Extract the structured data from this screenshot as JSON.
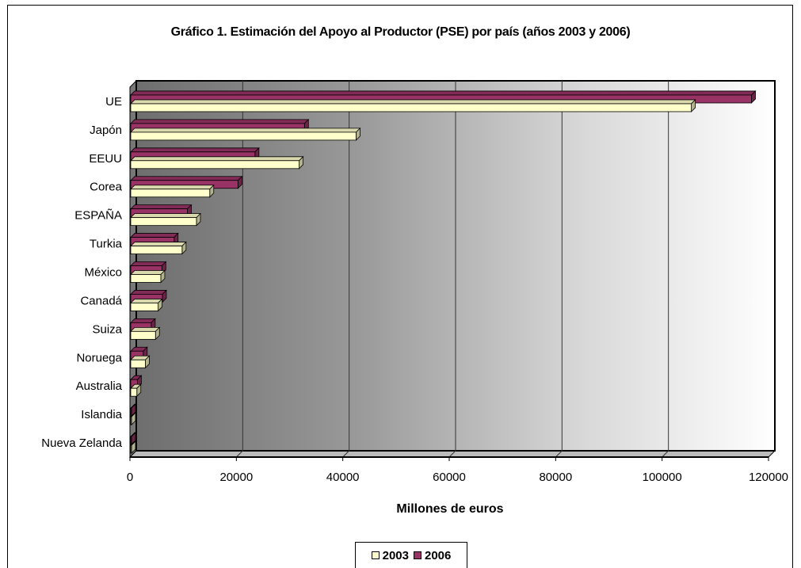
{
  "chart_data": {
    "type": "bar",
    "orientation": "horizontal",
    "title": "Gráfico 1. Estimación del Apoyo al Productor (PSE) por país (años 2003 y 2006)",
    "xlabel": "Millones de euros",
    "ylabel": "",
    "xlim": [
      0,
      120000
    ],
    "xticks": [
      "0",
      "20000",
      "40000",
      "60000",
      "80000",
      "100000",
      "120000"
    ],
    "grid": "vertical",
    "legend_position": "bottom",
    "categories": [
      "UE",
      "Japón",
      "EEUU",
      "Corea",
      "ESPAÑA",
      "Turkia",
      "México",
      "Canadá",
      "Suiza",
      "Noruega",
      "Australia",
      "Islandia",
      "Nueva Zelanda"
    ],
    "series": [
      {
        "name": "2003",
        "color": "#ffffcc",
        "values": [
          105500,
          42500,
          31800,
          15000,
          12500,
          9800,
          5800,
          5300,
          4800,
          2900,
          1300,
          200,
          100
        ]
      },
      {
        "name": "2006",
        "color": "#993366",
        "values": [
          116800,
          32800,
          23500,
          20300,
          10800,
          8300,
          6000,
          6100,
          4000,
          2500,
          1400,
          250,
          150
        ]
      }
    ]
  }
}
